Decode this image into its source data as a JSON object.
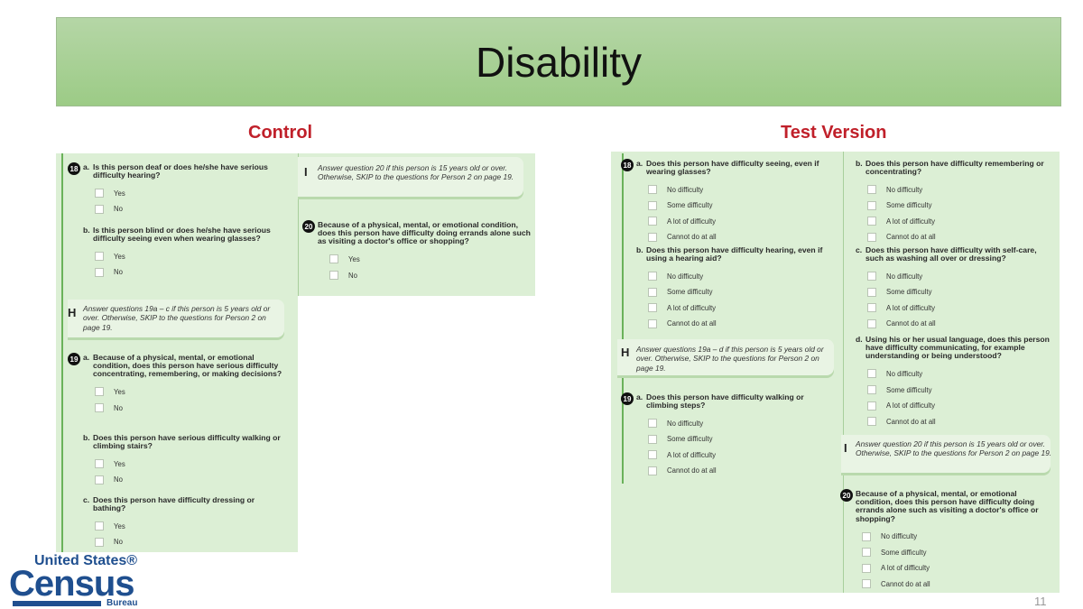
{
  "slide": {
    "title": "Disability",
    "page_number": "11"
  },
  "colors": {
    "banner": "#a9d095",
    "label": "#c0202a",
    "panel": "#dcefd5",
    "accent_line": "#6ab25a",
    "logo": "#1f4f8f"
  },
  "logo": {
    "line1": "United States®",
    "line2": "Census",
    "line3": "Bureau"
  },
  "control": {
    "label": "Control",
    "blocks": [
      {
        "type": "question",
        "badge": "18",
        "prefix": "a.",
        "text": "Is this person deaf or does he/she have serious difficulty hearing?",
        "options": [
          "Yes",
          "No"
        ]
      },
      {
        "type": "question",
        "prefix": "b.",
        "text": "Is this person blind or does he/she have serious difficulty seeing even when wearing glasses?",
        "options": [
          "Yes",
          "No"
        ]
      },
      {
        "type": "instruction",
        "letter": "H",
        "text": "Answer questions 19a – c if this person is 5 years old or over. Otherwise, SKIP to the questions for Person 2 on page 19."
      },
      {
        "type": "question",
        "badge": "19",
        "prefix": "a.",
        "text": "Because of a physical, mental, or emotional condition, does this person have serious difficulty concentrating, remembering, or making decisions?",
        "options": [
          "Yes",
          "No"
        ]
      },
      {
        "type": "question",
        "prefix": "b.",
        "text": "Does this person have serious difficulty walking or climbing stairs?",
        "options": [
          "Yes",
          "No"
        ]
      },
      {
        "type": "question",
        "prefix": "c.",
        "text": "Does this person have difficulty dressing or bathing?",
        "options": [
          "Yes",
          "No"
        ]
      },
      {
        "type": "instruction",
        "letter": "I",
        "text": "Answer question 20 if this person is 15 years old or over. Otherwise, SKIP to the questions for Person 2 on page 19."
      },
      {
        "type": "question",
        "badge": "20",
        "prefix": "",
        "text": "Because of a physical, mental, or emotional condition, does this person have difficulty doing errands alone such as visiting a doctor's office or shopping?",
        "options": [
          "Yes",
          "No"
        ]
      }
    ]
  },
  "test": {
    "label": "Test Version",
    "blocks": [
      {
        "type": "question",
        "badge": "18",
        "prefix": "a.",
        "text": "Does this person have difficulty seeing, even if wearing glasses?",
        "options": [
          "No difficulty",
          "Some difficulty",
          "A lot of difficulty",
          "Cannot do at all"
        ]
      },
      {
        "type": "question",
        "prefix": "b.",
        "text": "Does this person have difficulty hearing, even if using a hearing aid?",
        "options": [
          "No difficulty",
          "Some difficulty",
          "A lot of difficulty",
          "Cannot do at all"
        ]
      },
      {
        "type": "instruction",
        "letter": "H",
        "text": "Answer questions 19a – d if this person is 5 years old or over. Otherwise, SKIP to the questions for Person 2 on page 19."
      },
      {
        "type": "question",
        "badge": "19",
        "prefix": "a.",
        "text": "Does this person have difficulty walking or climbing steps?",
        "options": [
          "No difficulty",
          "Some difficulty",
          "A lot of difficulty",
          "Cannot do at all"
        ]
      },
      {
        "type": "question",
        "prefix": "b.",
        "text": "Does this person have difficulty remembering or concentrating?",
        "options": [
          "No difficulty",
          "Some difficulty",
          "A lot of difficulty",
          "Cannot do at all"
        ]
      },
      {
        "type": "question",
        "prefix": "c.",
        "text": "Does this person have difficulty with self-care, such as washing all over or dressing?",
        "options": [
          "No difficulty",
          "Some difficulty",
          "A lot of difficulty",
          "Cannot do at all"
        ]
      },
      {
        "type": "question",
        "prefix": "d.",
        "text": "Using his or her usual language, does this person have difficulty communicating, for example understanding or being understood?",
        "options": [
          "No difficulty",
          "Some difficulty",
          "A lot of difficulty",
          "Cannot do at all"
        ]
      },
      {
        "type": "instruction",
        "letter": "I",
        "text": "Answer question 20 if this person is 15 years old or over. Otherwise, SKIP to the questions for Person 2 on page 19."
      },
      {
        "type": "question",
        "badge": "20",
        "prefix": "",
        "text": "Because of a physical, mental, or emotional condition, does this person have difficulty doing errands alone such as visiting a doctor's office or shopping?",
        "options": [
          "No difficulty",
          "Some difficulty",
          "A lot of difficulty",
          "Cannot do at all"
        ]
      }
    ]
  }
}
